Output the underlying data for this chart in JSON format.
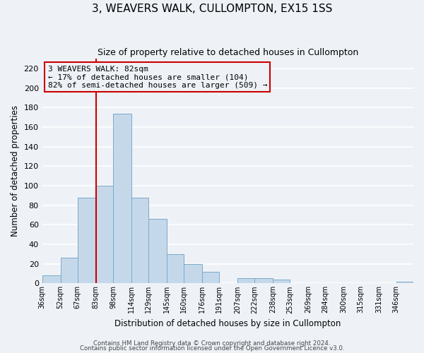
{
  "title": "3, WEAVERS WALK, CULLOMPTON, EX15 1SS",
  "subtitle": "Size of property relative to detached houses in Cullompton",
  "xlabel": "Distribution of detached houses by size in Cullompton",
  "ylabel": "Number of detached properties",
  "bar_color": "#c5d8ea",
  "bar_edge_color": "#7aaac8",
  "bin_labels": [
    "36sqm",
    "52sqm",
    "67sqm",
    "83sqm",
    "98sqm",
    "114sqm",
    "129sqm",
    "145sqm",
    "160sqm",
    "176sqm",
    "191sqm",
    "207sqm",
    "222sqm",
    "238sqm",
    "253sqm",
    "269sqm",
    "284sqm",
    "300sqm",
    "315sqm",
    "331sqm",
    "346sqm"
  ],
  "bar_values": [
    8,
    26,
    88,
    100,
    174,
    88,
    66,
    30,
    20,
    12,
    0,
    5,
    5,
    4,
    0,
    0,
    0,
    0,
    0,
    0,
    2
  ],
  "ylim": [
    0,
    230
  ],
  "yticks": [
    0,
    20,
    40,
    60,
    80,
    100,
    120,
    140,
    160,
    180,
    200,
    220
  ],
  "bin_edges": [
    36,
    52,
    67,
    83,
    98,
    114,
    129,
    145,
    160,
    176,
    191,
    207,
    222,
    238,
    253,
    269,
    284,
    300,
    315,
    331,
    346,
    361
  ],
  "annotation_title": "3 WEAVERS WALK: 82sqm",
  "annotation_line1": "← 17% of detached houses are smaller (104)",
  "annotation_line2": "82% of semi-detached houses are larger (509) →",
  "footer1": "Contains HM Land Registry data © Crown copyright and database right 2024.",
  "footer2": "Contains public sector information licensed under the Open Government Licence v3.0.",
  "bg_color": "#eef2f7",
  "grid_color": "#ffffff",
  "title_fontsize": 11,
  "subtitle_fontsize": 9,
  "annotation_box_edge_color": "#cc0000",
  "property_line_color": "#cc0000"
}
